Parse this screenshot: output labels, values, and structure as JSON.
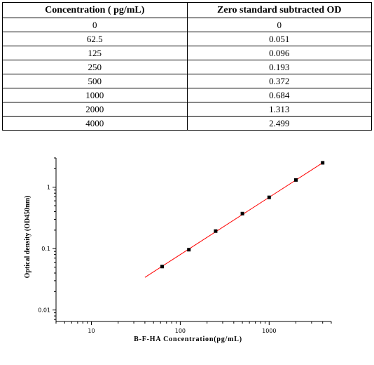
{
  "table": {
    "headers": [
      "Concentration ( pg/mL)",
      "Zero standard subtracted OD"
    ],
    "rows": [
      [
        "0",
        "0"
      ],
      [
        "62.5",
        "0.051"
      ],
      [
        "125",
        "0.096"
      ],
      [
        "250",
        "0.193"
      ],
      [
        "500",
        "0.372"
      ],
      [
        "1000",
        "0.684"
      ],
      [
        "2000",
        "1.313"
      ],
      [
        "4000",
        "2.499"
      ]
    ]
  },
  "chart_data": {
    "type": "scatter",
    "title": "",
    "xlabel": "B-F-HA Concentration(pg/mL)",
    "ylabel": "Optical density (OD450nm)",
    "xscale": "log",
    "yscale": "log",
    "xlim": [
      4,
      5000
    ],
    "ylim": [
      0.0065,
      3
    ],
    "xticks": [
      10,
      100,
      1000
    ],
    "xtick_labels": [
      "10",
      "100",
      "1000"
    ],
    "yticks": [
      0.01,
      0.1,
      1
    ],
    "ytick_labels": [
      "0.01",
      "0.1",
      "1"
    ],
    "grid": false,
    "legend": "none",
    "series": [
      {
        "kind": "points",
        "x": [
          62.5,
          125,
          250,
          500,
          1000,
          2000,
          4000
        ],
        "y": [
          0.051,
          0.096,
          0.193,
          0.372,
          0.684,
          1.313,
          2.499
        ],
        "color": "#000000"
      },
      {
        "kind": "fit-line",
        "x": [
          40,
          4000
        ],
        "y": [
          0.034,
          2.499
        ],
        "color": "#ff0000"
      }
    ]
  }
}
